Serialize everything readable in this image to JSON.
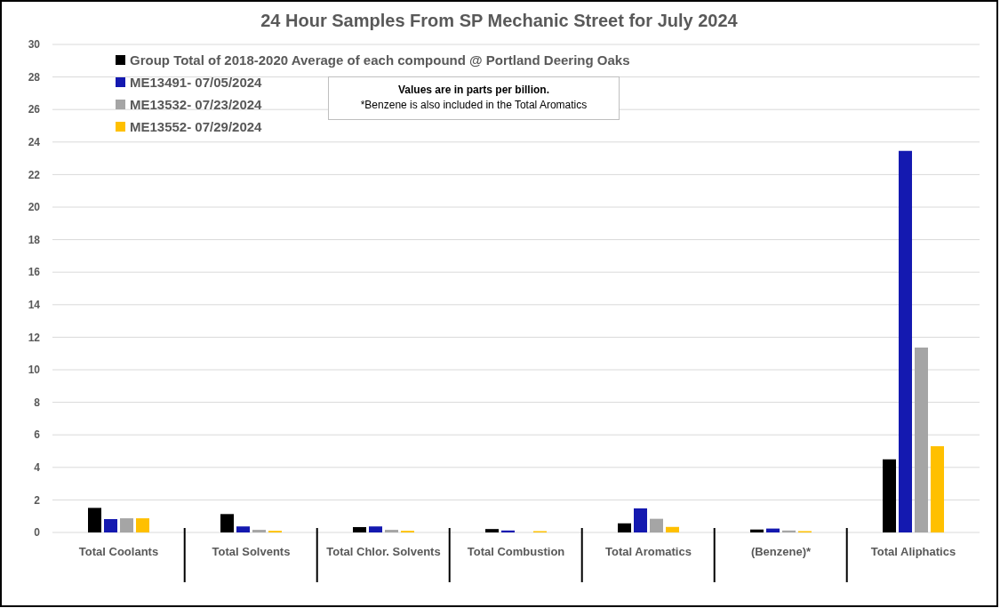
{
  "chart_data": {
    "type": "bar",
    "title": "24 Hour Samples From SP Mechanic Street for July 2024",
    "categories": [
      "Total Coolants",
      "Total Solvents",
      "Total Chlor. Solvents",
      "Total Combustion",
      "Total Aromatics",
      "(Benzene)*",
      "Total Aliphatics"
    ],
    "series": [
      {
        "name": "Group Total of 2018-2020 Average of each compound @ Portland Deering Oaks",
        "color": "#000000",
        "values": [
          1.51,
          1.13,
          0.33,
          0.21,
          0.56,
          0.18,
          4.5
        ]
      },
      {
        "name": "ME13491- 07/05/2024",
        "color": "#1419b0",
        "values": [
          0.82,
          0.37,
          0.37,
          0.12,
          1.48,
          0.24,
          23.45
        ]
      },
      {
        "name": "ME13532- 07/23/2024",
        "color": "#a5a5a5",
        "values": [
          0.87,
          0.16,
          0.16,
          0,
          0.84,
          0.12,
          11.37
        ]
      },
      {
        "name": "ME13552- 07/29/2024",
        "color": "#ffc000",
        "values": [
          0.87,
          0.1,
          0.1,
          0.08,
          0.34,
          0.08,
          5.3
        ]
      }
    ],
    "ylim": [
      0,
      30
    ],
    "yticks": [
      0,
      2,
      4,
      6,
      8,
      10,
      12,
      14,
      16,
      18,
      20,
      22,
      24,
      26,
      28,
      30
    ],
    "grid": "y",
    "legend": "top left",
    "annotations": [
      "Values are in parts per billion.",
      "*Benzene is also included in the Total Aromatics"
    ]
  }
}
